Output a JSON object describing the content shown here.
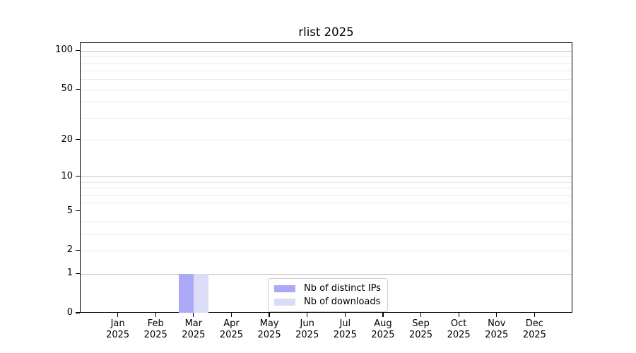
{
  "chart_data": {
    "type": "bar",
    "title": "rlist 2025",
    "categories": [
      "Jan",
      "Feb",
      "Mar",
      "Apr",
      "May",
      "Jun",
      "Jul",
      "Aug",
      "Sep",
      "Oct",
      "Nov",
      "Dec"
    ],
    "category_year": "2025",
    "series": [
      {
        "name": "Nb of distinct IPs",
        "color": "#a9a9f6",
        "values": [
          0,
          0,
          1,
          0,
          0,
          0,
          0,
          0,
          0,
          0,
          0,
          0
        ]
      },
      {
        "name": "Nb of downloads",
        "color": "#dcdcf9",
        "values": [
          0,
          0,
          1,
          0,
          0,
          0,
          0,
          0,
          0,
          0,
          0,
          0
        ]
      }
    ],
    "xlabel": "",
    "ylabel": "",
    "y_axis": {
      "scale": "log10(1+y)",
      "tick_labels": [
        0,
        1,
        2,
        5,
        10,
        20,
        50,
        100
      ],
      "decade_gridlines": [
        1,
        10,
        100
      ],
      "minor_gridlines": [
        2,
        3,
        4,
        6,
        7,
        8,
        9,
        20,
        30,
        40,
        50,
        60,
        70,
        80,
        90
      ],
      "top_value": 115,
      "ylim": [
        0,
        115
      ]
    },
    "legend_position": "bottom-center",
    "grid": "on",
    "colors": {
      "spine": "#000000",
      "decade_grid": "#c3c3c3",
      "minor_grid": "#ececec",
      "legend_border": "#cccccc",
      "background": "#ffffff"
    }
  }
}
